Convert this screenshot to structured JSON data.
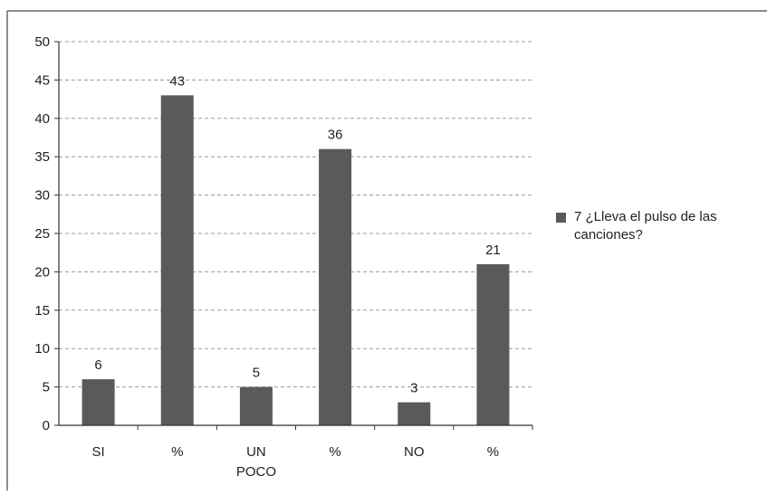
{
  "chart_data": {
    "type": "bar",
    "categories": [
      "SI",
      "%",
      "UN\nPOCO",
      "%",
      "NO",
      "%"
    ],
    "values": [
      6,
      43,
      5,
      36,
      3,
      21
    ],
    "data_labels": [
      "6",
      "43",
      "5",
      "36",
      "3",
      "21"
    ],
    "y_ticks": [
      "0",
      "5",
      "10",
      "15",
      "20",
      "25",
      "30",
      "35",
      "40",
      "45",
      "50"
    ],
    "ylim": [
      0,
      50
    ],
    "grid": "horizontal dashed",
    "legend_position": "right",
    "legend_entries": [
      "7 ¿Lleva el pulso de las canciones?"
    ],
    "colors": {
      "bar": "#5a5a5a",
      "grid": "#9a9a9a",
      "axis": "#333333"
    }
  }
}
